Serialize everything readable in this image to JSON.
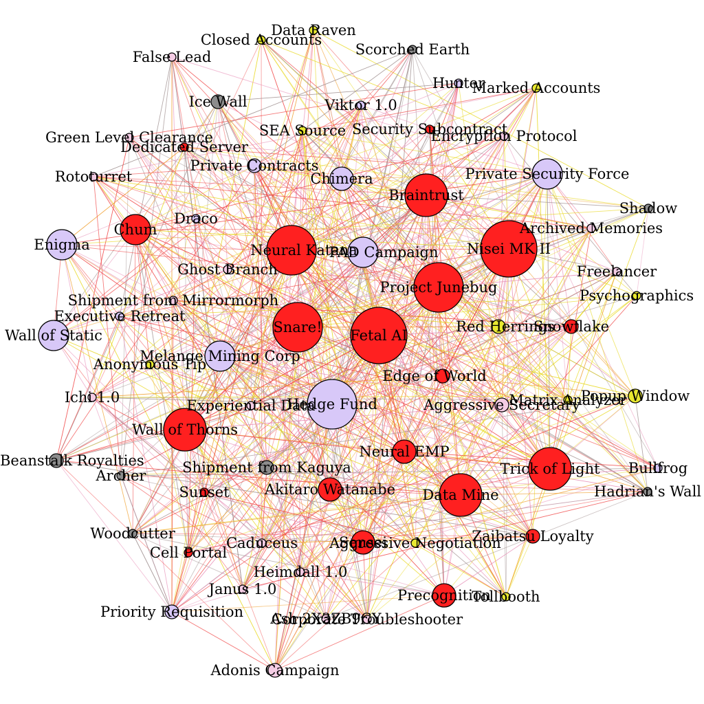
{
  "colors": {
    "red": "#ff2020",
    "purple": "#d8c8f8",
    "yellow": "#e8e830",
    "gray": "#8c8c8c",
    "pink": "#f4cce4",
    "edge_red": "#f04848",
    "edge_pink": "#e890b8",
    "edge_orange": "#f0a030",
    "edge_yellow": "#e8d820",
    "edge_gray": "#a09090"
  },
  "nodes": [
    {
      "id": "data-raven",
      "label": "Data Raven",
      "color": "yellow",
      "size": "xs"
    },
    {
      "id": "closed-accounts",
      "label": "Closed Accounts",
      "color": "yellow",
      "size": "xs"
    },
    {
      "id": "false-lead",
      "label": "False Lead",
      "color": "pink",
      "size": "xs"
    },
    {
      "id": "scorched-earth",
      "label": "Scorched Earth",
      "color": "gray",
      "size": "xs"
    },
    {
      "id": "hunter",
      "label": "Hunter",
      "color": "purple",
      "size": "xs"
    },
    {
      "id": "marked-accounts",
      "label": "Marked Accounts",
      "color": "yellow",
      "size": "xs"
    },
    {
      "id": "ice-wall",
      "label": "Ice Wall",
      "color": "gray",
      "size": "s"
    },
    {
      "id": "viktor",
      "label": "Viktor 1.0",
      "color": "purple",
      "size": "xs"
    },
    {
      "id": "sea-source",
      "label": "SEA Source",
      "color": "yellow",
      "size": "xs"
    },
    {
      "id": "security-subcontract",
      "label": "Security Subcontract",
      "color": "red",
      "size": "xs"
    },
    {
      "id": "encryption-protocol",
      "label": "Encryption Protocol",
      "color": "pink",
      "size": "xs"
    },
    {
      "id": "green-level",
      "label": "Green Level Clearance",
      "color": "pink",
      "size": "xs"
    },
    {
      "id": "dedicated-server",
      "label": "Dedicated Server",
      "color": "red",
      "size": "xs"
    },
    {
      "id": "private-contracts",
      "label": "Private Contracts",
      "color": "purple",
      "size": "s"
    },
    {
      "id": "chimera",
      "label": "Chimera",
      "color": "purple",
      "size": "m"
    },
    {
      "id": "private-security",
      "label": "Private Security Force",
      "color": "purple",
      "size": "l"
    },
    {
      "id": "rototurret",
      "label": "Rototurret",
      "color": "pink",
      "size": "xs"
    },
    {
      "id": "braintrust",
      "label": "Braintrust",
      "color": "red",
      "size": "xl"
    },
    {
      "id": "shadow",
      "label": "Shadow",
      "color": "gray",
      "size": "xs"
    },
    {
      "id": "draco",
      "label": "Draco",
      "color": "purple",
      "size": "xs"
    },
    {
      "id": "archived-memories",
      "label": "Archived Memories",
      "color": "pink",
      "size": "xs"
    },
    {
      "id": "chum",
      "label": "Chum",
      "color": "red",
      "size": "l"
    },
    {
      "id": "enigma",
      "label": "Enigma",
      "color": "purple",
      "size": "l"
    },
    {
      "id": "neural-katana",
      "label": "Neural Katana",
      "color": "red",
      "size": "xxl"
    },
    {
      "id": "pad-campaign",
      "label": "PAD Campaign",
      "color": "purple",
      "size": "l"
    },
    {
      "id": "nisei",
      "label": "Nisei MK II",
      "color": "red",
      "size": "xxxl"
    },
    {
      "id": "ghost-branch",
      "label": "Ghost Branch",
      "color": "pink",
      "size": "xs"
    },
    {
      "id": "freelancer",
      "label": "Freelancer",
      "color": "pink",
      "size": "xs"
    },
    {
      "id": "project-junebug",
      "label": "Project Junebug",
      "color": "red",
      "size": "xxl"
    },
    {
      "id": "psychographics",
      "label": "Psychographics",
      "color": "yellow",
      "size": "xs"
    },
    {
      "id": "shipment-mirrormorph",
      "label": "Shipment from Mirrormorph",
      "color": "pink",
      "size": "xs"
    },
    {
      "id": "executive-retreat",
      "label": "Executive Retreat",
      "color": "purple",
      "size": "xs"
    },
    {
      "id": "red-herrings",
      "label": "Red Herrings",
      "color": "yellow",
      "size": "s"
    },
    {
      "id": "snowflake",
      "label": "Snowflake",
      "color": "red",
      "size": "s"
    },
    {
      "id": "snare",
      "label": "Snare!",
      "color": "red",
      "size": "xxl"
    },
    {
      "id": "wall-of-static",
      "label": "Wall of Static",
      "color": "purple",
      "size": "l"
    },
    {
      "id": "petal-ai",
      "label": "Fetal AI",
      "color": "red",
      "size": "xxxl"
    },
    {
      "id": "melange",
      "label": "Melange Mining Corp",
      "color": "purple",
      "size": "l"
    },
    {
      "id": "anonymous-tip",
      "label": "Anonymous Tip",
      "color": "yellow",
      "size": "xs"
    },
    {
      "id": "edge-of-world",
      "label": "Edge of World",
      "color": "red",
      "size": "s"
    },
    {
      "id": "ichi",
      "label": "Ichi 1.0",
      "color": "pink",
      "size": "xs"
    },
    {
      "id": "hedge-fund",
      "label": "Hedge Fund",
      "color": "purple",
      "size": "xxl"
    },
    {
      "id": "experiential-data",
      "label": "Experiential Data",
      "color": "pink",
      "size": "xs"
    },
    {
      "id": "aggressive-secretary",
      "label": "Aggressive Secretary",
      "color": "pink",
      "size": "s"
    },
    {
      "id": "matrix-analyzer",
      "label": "Matrix Analyzer",
      "color": "yellow",
      "size": "xs"
    },
    {
      "id": "bad-times-window",
      "label": "Popup Window",
      "color": "yellow",
      "size": "s"
    },
    {
      "id": "wall-of-thorns",
      "label": "Wall of Thorns",
      "color": "red",
      "size": "xl"
    },
    {
      "id": "beanstalk",
      "label": "Beanstalk Royalties",
      "color": "gray",
      "size": "s"
    },
    {
      "id": "neural-emp",
      "label": "Neural EMP",
      "color": "red",
      "size": "m"
    },
    {
      "id": "trick-of-light",
      "label": "Trick of Light",
      "color": "red",
      "size": "xl"
    },
    {
      "id": "bullfrog",
      "label": "Bullfrog",
      "color": "purple",
      "size": "xs"
    },
    {
      "id": "archer",
      "label": "Archer",
      "color": "gray",
      "size": "xs"
    },
    {
      "id": "shipment-kaguya",
      "label": "Shipment from Kaguya",
      "color": "gray",
      "size": "s"
    },
    {
      "id": "akitaro",
      "label": "Akitaro Watanabe",
      "color": "red",
      "size": "m"
    },
    {
      "id": "data-mine",
      "label": "Data Mine",
      "color": "red",
      "size": "xl"
    },
    {
      "id": "hadrians-wall",
      "label": "Hadrian's Wall",
      "color": "gray",
      "size": "xs"
    },
    {
      "id": "sunset",
      "label": "Sunset",
      "color": "red",
      "size": "xs"
    },
    {
      "id": "woodcutter",
      "label": "Woodcutter",
      "color": "gray",
      "size": "xs"
    },
    {
      "id": "aggressive-negotiation",
      "label": "Aggressive Negotiation",
      "color": "yellow",
      "size": "xs"
    },
    {
      "id": "sensei",
      "label": "Sensei",
      "color": "red",
      "size": "m"
    },
    {
      "id": "zaibatsu",
      "label": "Zaibatsu Loyalty",
      "color": "red",
      "size": "s"
    },
    {
      "id": "cell-portal",
      "label": "Cell Portal",
      "color": "red",
      "size": "xs"
    },
    {
      "id": "caduceus",
      "label": "Caduceus",
      "color": "pink",
      "size": "xs"
    },
    {
      "id": "heimdall",
      "label": "Heimdall 1.0",
      "color": "pink",
      "size": "xs"
    },
    {
      "id": "janus",
      "label": "Janus 1.0",
      "color": "pink",
      "size": "xs"
    },
    {
      "id": "precognition",
      "label": "Precognition",
      "color": "red",
      "size": "m"
    },
    {
      "id": "tollbooth",
      "label": "Tollbooth",
      "color": "yellow",
      "size": "xs"
    },
    {
      "id": "priority-requisition",
      "label": "Priority Requisition",
      "color": "purple",
      "size": "s"
    },
    {
      "id": "ash",
      "label": "Ash 2X3ZB9CY",
      "color": "pink",
      "size": "xs"
    },
    {
      "id": "corporate-troubleshooter",
      "label": "Corporate Troubleshooter",
      "color": "pink",
      "size": "xs"
    },
    {
      "id": "adonis",
      "label": "Adonis Campaign",
      "color": "pink",
      "size": "s"
    }
  ]
}
